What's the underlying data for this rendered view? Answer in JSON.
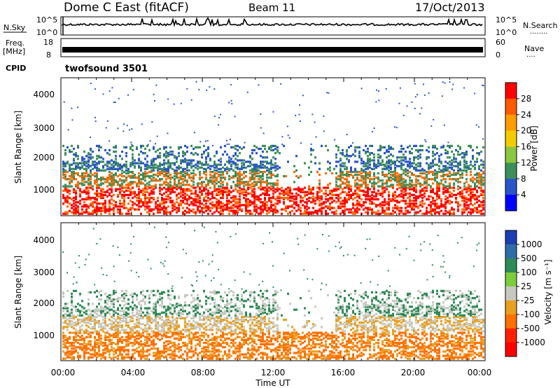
{
  "header": {
    "title": "Dome C East (fitACF)",
    "beam": "Beam 11",
    "date": "17/Oct/2013"
  },
  "status_panels": {
    "nsky": {
      "label": "N.Sky",
      "ticks_left": [
        "10^5",
        "10^0"
      ],
      "ticks_right": [
        "10^5",
        "10^0"
      ],
      "right_label": "N.Search"
    },
    "freq": {
      "label": "Freq.",
      "unit": "[MHz]",
      "ticks_left": [
        "18",
        "8"
      ],
      "ticks_right": [
        "60",
        "0"
      ],
      "right_label": "Nave"
    },
    "cpid": {
      "label": "CPID",
      "value": "twofsound 3501"
    }
  },
  "chart_data": [
    {
      "type": "heatmap",
      "name": "power",
      "ylabel": "Slant Range [km]",
      "yticks": [
        "1000",
        "2000",
        "3000",
        "4000"
      ],
      "ylim": [
        200,
        4500
      ],
      "xlim": [
        0,
        24
      ],
      "colorbar_label": "Power [dB]",
      "colorbar_ticks": [
        "28",
        "24",
        "20",
        "16",
        "12",
        "8",
        "4"
      ],
      "colorbar_colors": [
        "#ff0000",
        "#ff5a00",
        "#ff9d00",
        "#f2cc00",
        "#8dc63f",
        "#3c8f5a",
        "#2a55c8",
        "#0000ff"
      ]
    },
    {
      "type": "heatmap",
      "name": "velocity",
      "ylabel": "Slant Range [km]",
      "yticks": [
        "1000",
        "2000",
        "3000",
        "4000"
      ],
      "ylim": [
        200,
        4500
      ],
      "xlim": [
        0,
        24
      ],
      "colorbar_label": "Velocity [m s⁻¹]",
      "colorbar_ticks": [
        "1000",
        "500",
        "100",
        "25",
        "-25",
        "-100",
        "-500",
        "-1000"
      ],
      "colorbar_colors": [
        "#1a3fb0",
        "#2e6ea8",
        "#2e8b57",
        "#7ccd3c",
        "#c8c8c0",
        "#e8a020",
        "#ff7000",
        "#ff2000",
        "#ff0000"
      ]
    }
  ],
  "xaxis": {
    "label": "Time UT",
    "ticks": [
      "00:00",
      "04:00",
      "08:00",
      "12:00",
      "16:00",
      "20:00",
      "00:00"
    ]
  }
}
